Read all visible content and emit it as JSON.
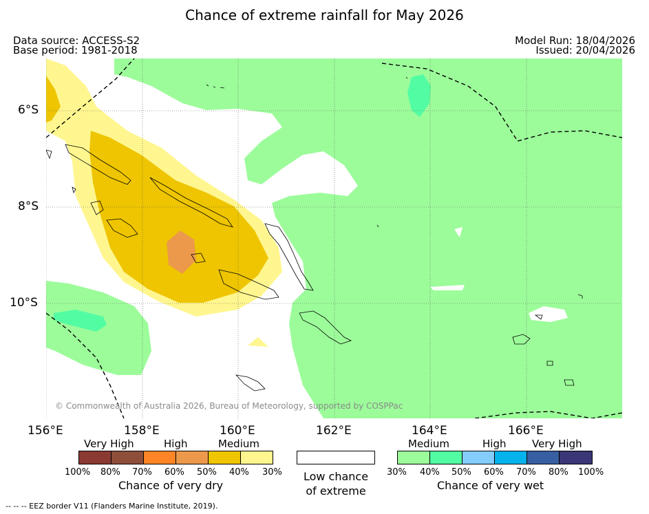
{
  "title": "Chance of extreme rainfall for May 2026",
  "meta": {
    "data_source": "Data source: ACCESS-S2",
    "base_period": "Base period: 1981-2018",
    "model_run": "Model Run: 18/04/2026",
    "issued": "Issued: 20/04/2026"
  },
  "map": {
    "longitude_labels": [
      "156°E",
      "158°E",
      "160°E",
      "162°E",
      "164°E",
      "166°E"
    ],
    "latitude_labels": [
      "6°S",
      "8°S",
      "10°S"
    ],
    "copyright": "© Commonwealth of Australia 2026, Bureau of Meteorology, supported by COSPPac"
  },
  "legend_dry": {
    "headings": [
      "Very High",
      "High",
      "Medium"
    ],
    "ticks": [
      "100%",
      "80%",
      "70%",
      "60%",
      "50%",
      "40%",
      "30%"
    ],
    "colors": [
      "#8b3a33",
      "#8e4e3a",
      "#ff8526",
      "#ec994b",
      "#eec500",
      "#fff68f"
    ],
    "title": "Chance of very dry"
  },
  "legend_low": {
    "line1": "Low chance",
    "line2": "of extreme",
    "color": "#ffffff"
  },
  "legend_wet": {
    "headings": [
      "Medium",
      "High",
      "Very High"
    ],
    "ticks": [
      "30%",
      "40%",
      "50%",
      "60%",
      "70%",
      "80%",
      "100%"
    ],
    "colors": [
      "#9cfc9a",
      "#52fca3",
      "#84ccfc",
      "#05b3ec",
      "#385fa2",
      "#3a3677"
    ],
    "title": "Chance of very wet"
  },
  "footer": "--  --  -- EEZ border V11 (Flanders Marine Institute, 2019)."
}
